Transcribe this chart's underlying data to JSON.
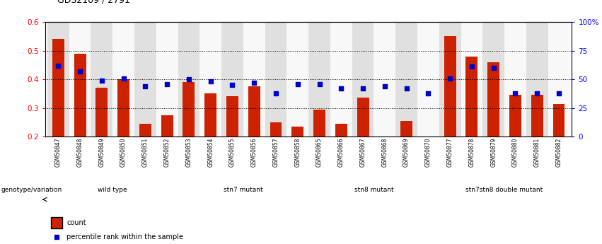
{
  "title": "GDS2109 / 2791",
  "samples": [
    "GSM50847",
    "GSM50848",
    "GSM50849",
    "GSM50850",
    "GSM50851",
    "GSM50852",
    "GSM50853",
    "GSM50854",
    "GSM50855",
    "GSM50856",
    "GSM50857",
    "GSM50858",
    "GSM50865",
    "GSM50866",
    "GSM50867",
    "GSM50868",
    "GSM50869",
    "GSM50870",
    "GSM50877",
    "GSM50878",
    "GSM50879",
    "GSM50880",
    "GSM50881",
    "GSM50882"
  ],
  "bar_values": [
    0.54,
    0.49,
    0.37,
    0.4,
    0.245,
    0.275,
    0.39,
    0.35,
    0.34,
    0.375,
    0.25,
    0.235,
    0.295,
    0.245,
    0.335,
    0.195,
    0.255,
    0.155,
    0.55,
    0.48,
    0.46,
    0.345,
    0.345,
    0.315
  ],
  "dot_values_pct": [
    62,
    57,
    49,
    51,
    44,
    46,
    50,
    48,
    45,
    47,
    38,
    46,
    46,
    42,
    42,
    44,
    42,
    38,
    51,
    61,
    60,
    38,
    38,
    38
  ],
  "groups": [
    {
      "label": "wild type",
      "start": 0,
      "end": 5,
      "color": "#d4f0d4"
    },
    {
      "label": "stn7 mutant",
      "start": 6,
      "end": 11,
      "color": "#a8e6a8"
    },
    {
      "label": "stn8 mutant",
      "start": 12,
      "end": 17,
      "color": "#d4f0d4"
    },
    {
      "label": "stn7stn8 double mutant",
      "start": 18,
      "end": 23,
      "color": "#a8e6a8"
    }
  ],
  "bar_color": "#cc2200",
  "dot_color": "#0000cc",
  "ylim_left": [
    0.2,
    0.6
  ],
  "ylim_right": [
    0,
    100
  ],
  "yticks_left": [
    0.2,
    0.3,
    0.4,
    0.5,
    0.6
  ],
  "ytick_labels_left": [
    "0.2",
    "0.3",
    "0.4",
    "0.5",
    "0.6"
  ],
  "yticks_right": [
    0,
    25,
    50,
    75,
    100
  ],
  "ytick_labels_right": [
    "0",
    "25",
    "50",
    "75",
    "100%"
  ],
  "legend_count_label": "count",
  "legend_pct_label": "percentile rank within the sample",
  "genotype_label": "genotype/variation",
  "background_color": "#ffffff",
  "plot_bg_color": "#ffffff",
  "tick_bg_even": "#e0e0e0",
  "tick_bg_odd": "#f8f8f8"
}
